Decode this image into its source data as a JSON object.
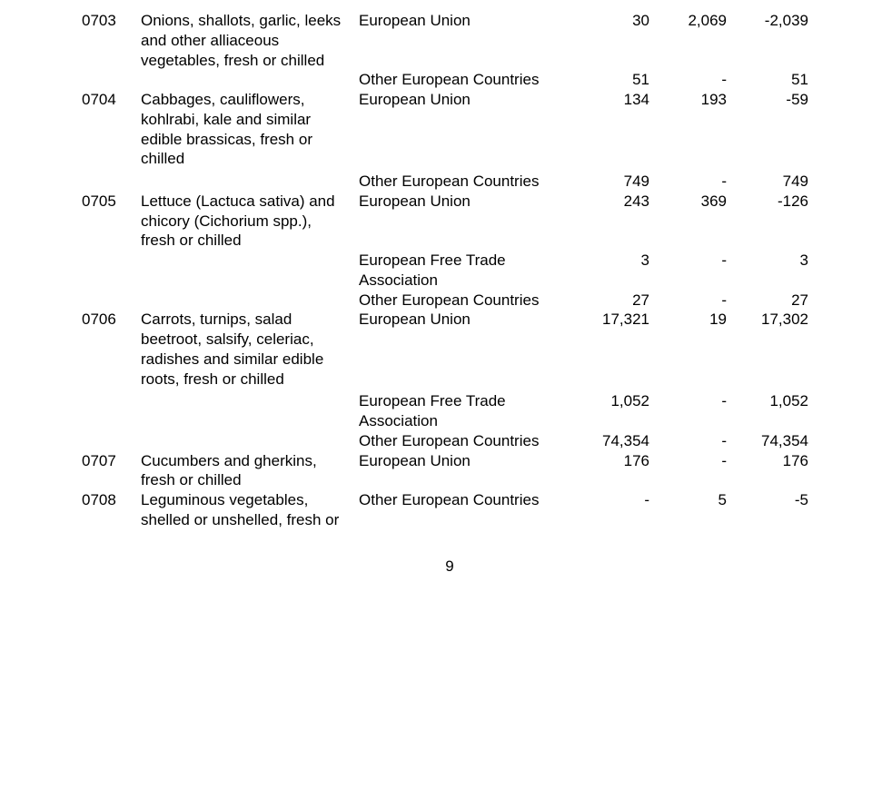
{
  "table": {
    "rows": [
      {
        "code": "0703",
        "desc": "Onions, shallots, garlic, leeks and other alliaceous vegetables, fresh or chilled",
        "origin": "European Union",
        "v1": "30",
        "v2": "2,069",
        "v3": "-2,039"
      },
      {
        "origin": "Other European Countries",
        "v1": "51",
        "v2": "-",
        "v3": "51"
      },
      {
        "code": "0704",
        "desc": "Cabbages, cauliflowers, kohlrabi, kale and similar edible brassicas, fresh or chilled",
        "origin": "European Union",
        "v1": "134",
        "v2": "193",
        "v3": "-59"
      },
      {
        "origin": "Other European Countries",
        "v1": "749",
        "v2": "-",
        "v3": "749"
      },
      {
        "code": "0705",
        "desc": "Lettuce (Lactuca sativa) and chicory (Cichorium spp.), fresh or chilled",
        "origin": "European Union",
        "v1": "243",
        "v2": "369",
        "v3": "-126"
      },
      {
        "origin": "European Free Trade Association",
        "v1": "3",
        "v2": "-",
        "v3": "3"
      },
      {
        "origin": "Other European Countries",
        "v1": "27",
        "v2": "-",
        "v3": "27"
      },
      {
        "code": "0706",
        "desc": "Carrots, turnips, salad beetroot, salsify, celeriac, radishes and similar edible roots, fresh or chilled",
        "origin": "European Union",
        "v1": "17,321",
        "v2": "19",
        "v3": "17,302"
      },
      {
        "origin": "European Free Trade Association",
        "v1": "1,052",
        "v2": "-",
        "v3": "1,052"
      },
      {
        "origin": "Other European Countries",
        "v1": "74,354",
        "v2": "-",
        "v3": "74,354"
      },
      {
        "code": "0707",
        "desc": "Cucumbers and gherkins, fresh or chilled",
        "origin": "European Union",
        "v1": "176",
        "v2": "-",
        "v3": "176"
      },
      {
        "code": "0708",
        "desc": "Leguminous vegetables, shelled or unshelled, fresh or",
        "origin": "Other European Countries",
        "v1": "-",
        "v2": "5",
        "v3": "-5"
      }
    ]
  },
  "pagenum": "9"
}
